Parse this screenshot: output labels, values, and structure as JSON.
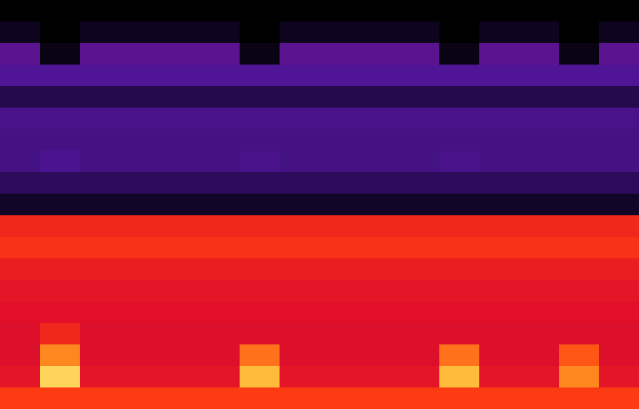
{
  "chart_data": {
    "type": "heatmap",
    "tick_labels": false,
    "color_range": [
      0,
      1
    ],
    "cells": [
      [
        0,
        0,
        0,
        0,
        0,
        0,
        0,
        0,
        0,
        0,
        0,
        0,
        0,
        0,
        0,
        0
      ],
      [
        0.08,
        0,
        0.08,
        0.08,
        0.08,
        0.08,
        0,
        0.08,
        0.08,
        0.08,
        0.08,
        0,
        0.08,
        0.08,
        0,
        0.08
      ],
      [
        0.33,
        0.05,
        0.33,
        0.33,
        0.33,
        0.33,
        0.05,
        0.33,
        0.33,
        0.33,
        0.33,
        0.05,
        0.33,
        0.33,
        0.05,
        0.33
      ],
      [
        0.3,
        0.3,
        0.3,
        0.3,
        0.3,
        0.3,
        0.3,
        0.3,
        0.3,
        0.3,
        0.3,
        0.3,
        0.3,
        0.3,
        0.3,
        0.3
      ],
      [
        0.18,
        0.18,
        0.18,
        0.18,
        0.18,
        0.18,
        0.18,
        0.18,
        0.18,
        0.18,
        0.18,
        0.18,
        0.18,
        0.18,
        0.18,
        0.18
      ],
      [
        0.28,
        0.28,
        0.28,
        0.28,
        0.28,
        0.28,
        0.28,
        0.28,
        0.28,
        0.28,
        0.28,
        0.28,
        0.28,
        0.28,
        0.28,
        0.28
      ],
      [
        0.27,
        0.27,
        0.27,
        0.27,
        0.27,
        0.27,
        0.27,
        0.27,
        0.27,
        0.27,
        0.27,
        0.27,
        0.27,
        0.27,
        0.27,
        0.27
      ],
      [
        0.27,
        0.29,
        0.27,
        0.27,
        0.27,
        0.27,
        0.28,
        0.27,
        0.27,
        0.27,
        0.27,
        0.28,
        0.27,
        0.27,
        0.27,
        0.27
      ],
      [
        0.2,
        0.2,
        0.2,
        0.2,
        0.2,
        0.2,
        0.2,
        0.2,
        0.2,
        0.2,
        0.2,
        0.2,
        0.2,
        0.2,
        0.2,
        0.2
      ],
      [
        0.1,
        0.1,
        0.1,
        0.1,
        0.1,
        0.1,
        0.1,
        0.1,
        0.1,
        0.1,
        0.1,
        0.1,
        0.1,
        0.1,
        0.1,
        0.1
      ],
      [
        0.7,
        0.7,
        0.7,
        0.7,
        0.7,
        0.7,
        0.7,
        0.7,
        0.7,
        0.7,
        0.7,
        0.7,
        0.7,
        0.7,
        0.7,
        0.7
      ],
      [
        0.72,
        0.72,
        0.72,
        0.72,
        0.72,
        0.72,
        0.72,
        0.72,
        0.72,
        0.72,
        0.72,
        0.72,
        0.72,
        0.72,
        0.72,
        0.72
      ],
      [
        0.68,
        0.68,
        0.68,
        0.68,
        0.68,
        0.68,
        0.68,
        0.68,
        0.68,
        0.68,
        0.68,
        0.68,
        0.68,
        0.68,
        0.68,
        0.68
      ],
      [
        0.66,
        0.66,
        0.66,
        0.66,
        0.66,
        0.66,
        0.66,
        0.66,
        0.66,
        0.66,
        0.66,
        0.66,
        0.66,
        0.66,
        0.66,
        0.66
      ],
      [
        0.65,
        0.65,
        0.65,
        0.65,
        0.65,
        0.65,
        0.65,
        0.65,
        0.65,
        0.65,
        0.65,
        0.65,
        0.65,
        0.65,
        0.65,
        0.65
      ],
      [
        0.64,
        0.7,
        0.64,
        0.64,
        0.64,
        0.64,
        0.64,
        0.64,
        0.64,
        0.64,
        0.64,
        0.64,
        0.64,
        0.64,
        0.64,
        0.64
      ],
      [
        0.64,
        0.85,
        0.64,
        0.64,
        0.64,
        0.64,
        0.82,
        0.64,
        0.64,
        0.64,
        0.64,
        0.82,
        0.64,
        0.64,
        0.78,
        0.64
      ],
      [
        0.66,
        0.95,
        0.66,
        0.66,
        0.66,
        0.66,
        0.92,
        0.66,
        0.66,
        0.66,
        0.66,
        0.92,
        0.66,
        0.66,
        0.85,
        0.66
      ],
      [
        0.74,
        0.74,
        0.74,
        0.74,
        0.74,
        0.74,
        0.74,
        0.74,
        0.74,
        0.74,
        0.74,
        0.74,
        0.74,
        0.74,
        0.74,
        0.74
      ]
    ]
  }
}
